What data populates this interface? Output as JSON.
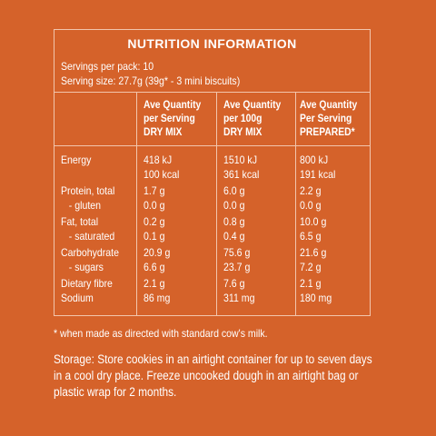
{
  "panel": {
    "title": "NUTRITION INFORMATION",
    "servings_per_pack": "Servings per pack: 10",
    "serving_size": "Serving size: 27.7g (39g* - 3 mini biscuits)"
  },
  "columns": [
    [
      "Ave Quantity",
      "per Serving",
      "DRY MIX"
    ],
    [
      "Ave Quantity",
      "per 100g",
      "DRY MIX"
    ],
    [
      "Ave Quantity",
      "Per Serving",
      "PREPARED*"
    ]
  ],
  "rows": [
    {
      "label": "Energy",
      "sub": false,
      "values": [
        "418 kJ",
        "1510 kJ",
        "800 kJ"
      ]
    },
    {
      "label": "",
      "sub": false,
      "values": [
        "100 kcal",
        "361 kcal",
        "191 kcal"
      ]
    },
    {
      "label": "Protein, total",
      "sub": false,
      "values": [
        "1.7 g",
        "6.0 g",
        "2.2 g"
      ]
    },
    {
      "label": "- gluten",
      "sub": true,
      "values": [
        "0.0 g",
        "0.0 g",
        "0.0 g"
      ]
    },
    {
      "label": "Fat, total",
      "sub": false,
      "values": [
        "0.2 g",
        "0.8 g",
        "10.0 g"
      ]
    },
    {
      "label": "- saturated",
      "sub": true,
      "values": [
        "0.1 g",
        "0.4 g",
        "6.5 g"
      ]
    },
    {
      "label": "Carbohydrate",
      "sub": false,
      "values": [
        "20.9 g",
        "75.6 g",
        "21.6 g"
      ]
    },
    {
      "label": "- sugars",
      "sub": true,
      "values": [
        "6.6 g",
        "23.7 g",
        "7.2 g"
      ]
    },
    {
      "label": "Dietary fibre",
      "sub": false,
      "values": [
        "2.1 g",
        "7.6 g",
        "2.1 g"
      ]
    },
    {
      "label": "Sodium",
      "sub": false,
      "values": [
        "86 mg",
        "311 mg",
        "180 mg"
      ]
    }
  ],
  "footnote": "* when made as directed with standard cow's milk.",
  "storage": "Storage: Store cookies in an airtight container for up to seven days in a cool dry place. Freeze uncooked dough in an airtight bag or plastic wrap for 2 months.",
  "colors": {
    "background": "#d5622a",
    "text": "#ffffff",
    "rule": "#f2c5ad"
  }
}
